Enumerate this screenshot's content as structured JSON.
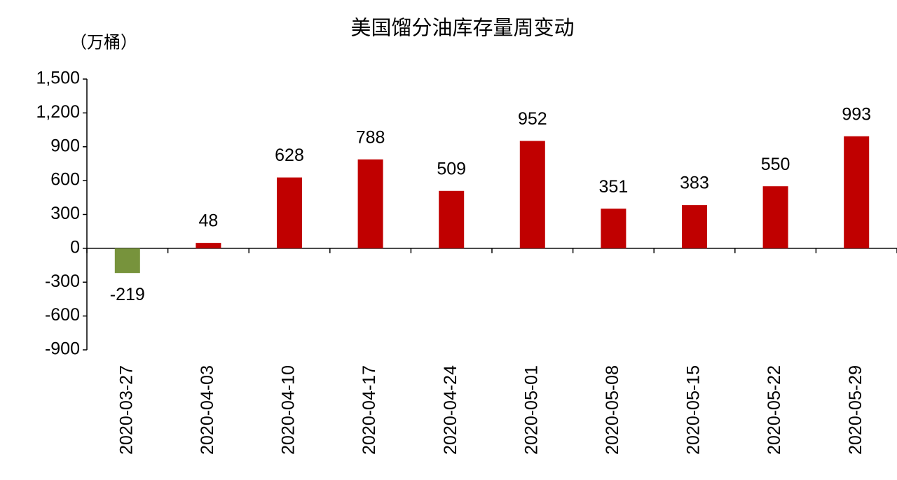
{
  "chart_data": {
    "type": "bar",
    "title": "美国馏分油库存量周变动",
    "y_label": "（万桶）",
    "categories": [
      "2020-03-27",
      "2020-04-03",
      "2020-04-10",
      "2020-04-17",
      "2020-04-24",
      "2020-05-01",
      "2020-05-08",
      "2020-05-15",
      "2020-05-22",
      "2020-05-29"
    ],
    "values": [
      -219,
      48,
      628,
      788,
      509,
      952,
      351,
      383,
      550,
      993
    ],
    "color": "#c00000",
    "negative_color": "#77933c",
    "ylim": [
      -900,
      1500
    ],
    "yticks": [
      {
        "value": 1500,
        "label": "1,500"
      },
      {
        "value": 1200,
        "label": "1,200"
      },
      900,
      600,
      300,
      0,
      -300,
      -600,
      -900
    ],
    "grid": false
  }
}
